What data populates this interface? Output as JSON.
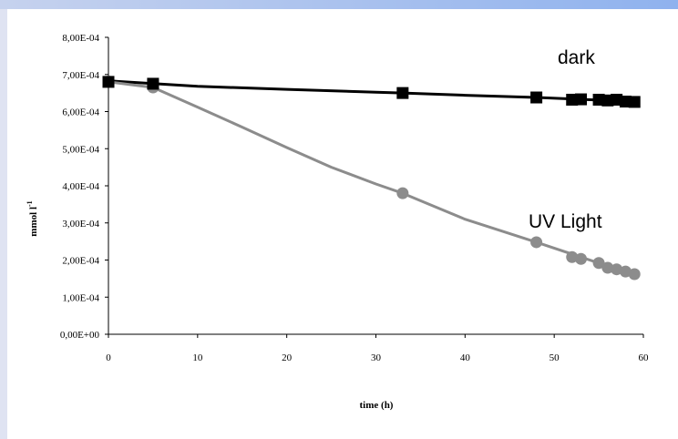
{
  "chart_data": {
    "type": "line",
    "xlabel": "time (h)",
    "ylabel": "mmol l",
    "ylabel_sup": "-1",
    "xlim": [
      0,
      60
    ],
    "ylim": [
      0,
      0.0008
    ],
    "x_ticks": [
      0,
      10,
      20,
      30,
      40,
      50,
      60
    ],
    "x_tick_labels": [
      "0",
      "10",
      "20",
      "30",
      "40",
      "50",
      "60"
    ],
    "y_ticks": [
      0,
      0.0001,
      0.0002,
      0.0003,
      0.0004,
      0.0005,
      0.0006,
      0.0007,
      0.0008
    ],
    "y_tick_labels": [
      "0,00E+00",
      "1,00E-04",
      "2,00E-04",
      "3,00E-04",
      "4,00E-04",
      "5,00E-04",
      "6,00E-04",
      "7,00E-04",
      "8,00E-04"
    ],
    "grid": false,
    "series": [
      {
        "name": "dark",
        "color": "#000000",
        "marker": "square",
        "x": [
          0,
          5,
          33,
          48,
          52,
          53,
          55,
          56,
          57,
          58,
          59
        ],
        "y": [
          0.00068,
          0.000675,
          0.00065,
          0.000638,
          0.000632,
          0.000633,
          0.000632,
          0.00063,
          0.000632,
          0.000627,
          0.000626
        ],
        "fit": [
          [
            0,
            0.000683
          ],
          [
            10,
            0.000668
          ],
          [
            20,
            0.00066
          ],
          [
            30,
            0.000652
          ],
          [
            33,
            0.00065
          ],
          [
            40,
            0.000644
          ],
          [
            48,
            0.000638
          ],
          [
            55,
            0.000631
          ],
          [
            59,
            0.000626
          ]
        ]
      },
      {
        "name": "UV Light",
        "color": "#8c8c8c",
        "marker": "circle",
        "x": [
          0,
          5,
          33,
          48,
          52,
          53,
          55,
          56,
          57,
          58,
          59
        ],
        "y": [
          0.000681,
          0.000665,
          0.00038,
          0.000248,
          0.000208,
          0.000203,
          0.000192,
          0.000179,
          0.000175,
          0.000169,
          0.000162
        ],
        "fit": [
          [
            0,
            0.00068
          ],
          [
            5,
            0.000665
          ],
          [
            10,
            0.000612
          ],
          [
            15,
            0.000558
          ],
          [
            20,
            0.000503
          ],
          [
            25,
            0.00045
          ],
          [
            30,
            0.000405
          ],
          [
            33,
            0.00038
          ],
          [
            40,
            0.00031
          ],
          [
            48,
            0.000248
          ],
          [
            55,
            0.000192
          ],
          [
            59,
            0.000162
          ]
        ]
      }
    ]
  }
}
